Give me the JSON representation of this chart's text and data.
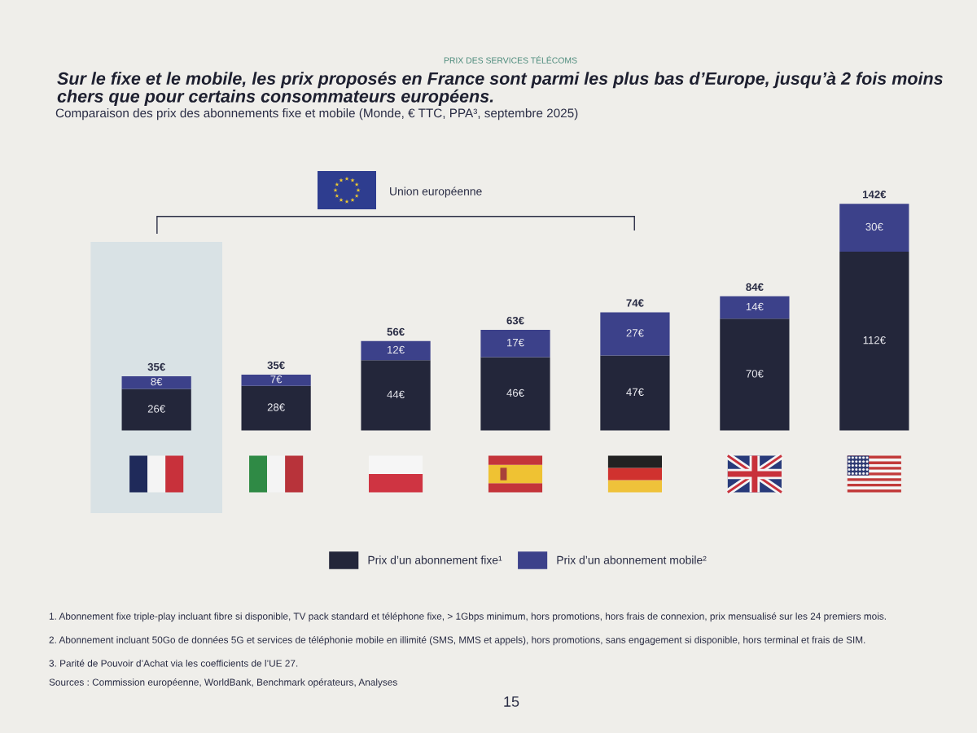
{
  "chart_data": {
    "type": "bar",
    "title": "Sur le fixe et le mobile, les prix proposés en France sont parmi les plus bas d’Europe, jusqu’à 2 fois moins chers que pour certains consommateurs européens.",
    "subtitle": "Comparaison des prix des abonnements fixe et mobile (Monde, € TTC, PPA³, septembre 2025)",
    "categories": [
      null,
      null,
      null,
      null,
      null,
      null,
      null
    ],
    "stacked": true,
    "series": [
      {
        "name": "Prix d’un abonnement fixe¹",
        "color": "#23263a",
        "values": [
          26,
          28,
          44,
          46,
          47,
          70,
          112
        ],
        "value_labels": [
          "26€",
          "28€",
          "44€",
          "46€",
          "47€",
          "70€",
          "112€"
        ]
      },
      {
        "name": "Prix d’un abonnement mobile²",
        "color": "#3c418a",
        "values": [
          8,
          7,
          12,
          17,
          27,
          14,
          30
        ],
        "value_labels": [
          "8€",
          "7€",
          "12€",
          "17€",
          "27€",
          "14€",
          "30€"
        ]
      }
    ],
    "totals": [
      "35€",
      "35€",
      "56€",
      "63€",
      "74€",
      "84€",
      "142€"
    ],
    "legend": "bottom",
    "annotations": [
      "PRIX DES SERVICES TÉLÉCOMS",
      "Union européenne",
      "1. Abonnement fixe triple-play incluant fibre si disponible, TV pack standard et téléphone fixe, > 1Gbps minimum, hors promotions, hors frais de connexion, prix mensualisé sur les 24 premiers mois.",
      "2. Abonnement incluant 50Go de données 5G et services de téléphonie mobile en illimité (SMS, MMS et appels), hors promotions, sans engagement si disponible, hors terminal et frais de SIM.",
      "3. Parité de Pouvoir d’Achat via les coefficients de l’UE 27.",
      "Sources : Commission européenne, WorldBank, Benchmark opérateurs, Analyses",
      "15"
    ]
  }
}
